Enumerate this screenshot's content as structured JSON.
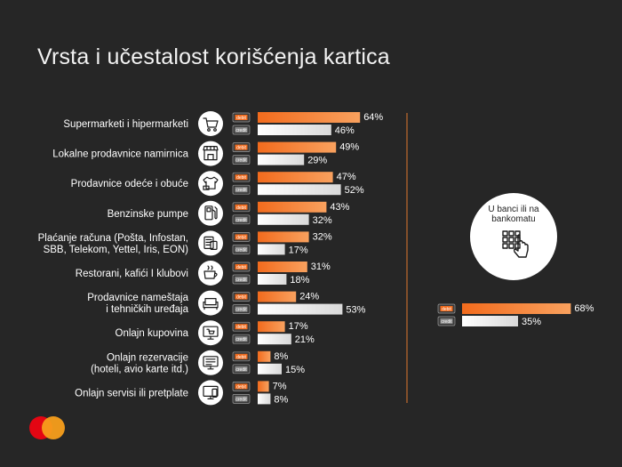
{
  "title": "Vrsta i učestalost korišćenja kartica",
  "colors": {
    "debit": "#f26b1d",
    "debit_light": "#f9a15e",
    "credit": "#e8e8e8",
    "background": "#262626",
    "divider": "#e0782e"
  },
  "tags": {
    "debit": "debit",
    "credit": "credit"
  },
  "chart_data": {
    "type": "bar",
    "title": "Vrsta i učestalost korišćenja kartica",
    "orientation": "horizontal",
    "categories": [
      {
        "lines": [
          "Supermarketi i hipermarketi"
        ],
        "icon": "shopping-cart-icon"
      },
      {
        "lines": [
          "Lokalne prodavnice namirnica"
        ],
        "icon": "storefront-icon"
      },
      {
        "lines": [
          "Prodavnice odeće i obuće"
        ],
        "icon": "clothing-icon"
      },
      {
        "lines": [
          "Benzinske pumpe"
        ],
        "icon": "fuel-pump-icon"
      },
      {
        "lines": [
          "Plaćanje računa (Pošta, Infostan,",
          "SBB, Telekom, Yettel, Iris, EON)"
        ],
        "icon": "bill-payment-icon"
      },
      {
        "lines": [
          "Restorani, kafići I klubovi"
        ],
        "icon": "coffee-cup-icon"
      },
      {
        "lines": [
          "Prodavnice nameštaja",
          "i tehničkih uređaja"
        ],
        "icon": "sofa-icon"
      },
      {
        "lines": [
          "Onlajn kupovina"
        ],
        "icon": "online-shopping-icon"
      },
      {
        "lines": [
          "Onlajn rezervacije",
          "(hoteli, avio karte itd.)"
        ],
        "icon": "online-booking-icon"
      },
      {
        "lines": [
          "Onlajn servisi ili pretplate"
        ],
        "icon": "online-services-icon"
      }
    ],
    "series": [
      {
        "name": "debit",
        "values": [
          64,
          49,
          47,
          43,
          32,
          31,
          24,
          17,
          8,
          7
        ]
      },
      {
        "name": "credit",
        "values": [
          46,
          29,
          52,
          32,
          17,
          18,
          53,
          21,
          15,
          8
        ]
      }
    ],
    "value_suffix": "%",
    "xlim": [
      0,
      100
    ],
    "extra": {
      "label_lines": [
        "U banci ili na",
        "bankomatu"
      ],
      "icon": "atm-keypad-icon",
      "debit": 68,
      "credit": 35
    }
  },
  "logo": {
    "icon": "mastercard-logo-icon"
  }
}
